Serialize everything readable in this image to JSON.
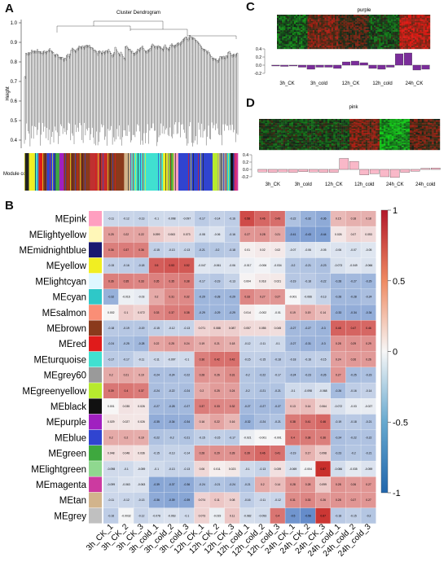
{
  "panels": {
    "A": {
      "letter": "A",
      "title": "Cluster Dendrogram",
      "ylabel": "Height",
      "yticks": [
        "1.0",
        "0.9",
        "0.8",
        "0.7",
        "0.6",
        "0.5",
        "0.4"
      ],
      "module_colors_label": "Module colors"
    },
    "B": {
      "letter": "B"
    },
    "C": {
      "letter": "C",
      "title": "purple",
      "yticks": [
        "0.4",
        "0.2",
        "0.0",
        "-0.2"
      ],
      "xlabels": [
        "3h_CK",
        "3h_cold",
        "12h_CK",
        "12h_cold",
        "24h_CK"
      ],
      "bar_color": "#7b2d9b",
      "bar_values": [
        -0.02,
        -0.03,
        -0.02,
        -0.05,
        -0.1,
        -0.05,
        -0.05,
        -0.08,
        0.08,
        0.1,
        0.06,
        -0.08,
        -0.1,
        -0.05,
        0.28,
        0.3,
        -0.12,
        -0.1
      ]
    },
    "D": {
      "letter": "D",
      "title": "pink",
      "yticks": [
        "0.4",
        "0.2",
        "0.0",
        "-0.2"
      ],
      "xlabels": [
        "3h_CK",
        "3h_cold",
        "12h_CK",
        "12h_cold",
        "24h_CK",
        "24h_cold"
      ],
      "bar_color": "#f9b8c8",
      "bar_values": [
        -0.07,
        -0.08,
        -0.07,
        -0.08,
        -0.06,
        -0.07,
        -0.08,
        -0.08,
        0.3,
        0.22,
        -0.15,
        -0.12,
        -0.2,
        -0.22,
        -0.08,
        -0.05,
        0.03,
        0.04
      ]
    }
  },
  "heatmap": {
    "columns": [
      "3h_CK_1",
      "3h_CK_2",
      "3h_CK_3",
      "3h_cold_1",
      "3h_cold_2",
      "3h_cold_3",
      "12h_CK_1",
      "12h_CK_2",
      "12h_CK_3",
      "12h_cold_1",
      "12h_cold_2",
      "12h_cold_3",
      "24h_CK_1",
      "24h_CK_2",
      "24h_CK_3",
      "24h_cold_1",
      "24h_cold_2",
      "24h_cold_3"
    ],
    "colorbar_ticks": [
      "1",
      "0.5",
      "0",
      "-0.5",
      "-1"
    ],
    "rows": [
      {
        "name": "MEpink",
        "color": "#ff9fc0",
        "values": [
          -0.11,
          -0.12,
          -0.13,
          -0.1,
          -0.098,
          -0.097,
          -0.17,
          -0.14,
          -0.16,
          0.58,
          0.46,
          0.43,
          -0.22,
          -0.32,
          -0.36,
          0.15,
          0.18,
          0.18
        ]
      },
      {
        "name": "MElightyellow",
        "color": "#fff7b8",
        "values": [
          0.25,
          0.22,
          0.22,
          0.099,
          0.063,
          0.073,
          -0.08,
          -0.06,
          -0.16,
          0.27,
          0.28,
          0.21,
          -0.41,
          -0.43,
          -0.44,
          0.026,
          0.07,
          0.053
        ]
      },
      {
        "name": "MEmidnightblue",
        "color": "#191970",
        "values": [
          0.36,
          0.37,
          0.36,
          -0.15,
          -0.13,
          -0.13,
          -0.21,
          -0.2,
          -0.18,
          0.01,
          0.02,
          0.02,
          -0.07,
          -0.06,
          -0.05,
          -0.06,
          -0.07,
          -0.05
        ]
      },
      {
        "name": "MEyellow",
        "color": "#f1ee22",
        "values": [
          -0.15,
          -0.16,
          -0.18,
          0.5,
          0.53,
          0.52,
          -0.047,
          -0.061,
          -0.06,
          -0.017,
          -0.006,
          -0.034,
          -0.2,
          -0.21,
          -0.23,
          -0.073,
          -0.049,
          -0.066
        ]
      },
      {
        "name": "MElightcyan",
        "color": "#dff7ff",
        "values": [
          0.36,
          0.35,
          0.33,
          0.35,
          0.35,
          0.38,
          -0.17,
          -0.19,
          -0.13,
          0.004,
          0.018,
          0.021,
          -0.19,
          -0.18,
          -0.22,
          -0.28,
          -0.27,
          -0.29
        ]
      },
      {
        "name": "MEcyan",
        "color": "#2ec8c8",
        "values": [
          -0.32,
          -0.016,
          -0.03,
          0.2,
          0.31,
          0.32,
          -0.29,
          -0.28,
          -0.29,
          0.33,
          0.27,
          0.27,
          -0.001,
          -0.066,
          -0.13,
          -0.28,
          -0.28,
          -0.24
        ]
      },
      {
        "name": "MEsalmon",
        "color": "#fa8e76",
        "values": [
          0.002,
          0.1,
          0.072,
          0.33,
          0.37,
          0.38,
          -0.29,
          -0.29,
          -0.29,
          0.014,
          -0.002,
          -0.01,
          0.19,
          0.19,
          0.14,
          -0.33,
          -0.34,
          -0.34
        ]
      },
      {
        "name": "MEbrown",
        "color": "#8a3a1c",
        "values": [
          -0.18,
          -0.19,
          -0.19,
          -0.15,
          -0.12,
          -0.13,
          0.071,
          0.088,
          0.087,
          0.057,
          0.055,
          0.045,
          -0.27,
          -0.27,
          -0.3,
          0.48,
          0.47,
          0.46
        ]
      },
      {
        "name": "MEred",
        "color": "#e01b1b",
        "values": [
          -0.24,
          -0.25,
          -0.28,
          0.22,
          0.25,
          0.24,
          0.19,
          0.21,
          0.18,
          -0.12,
          -0.11,
          -0.1,
          -0.27,
          -0.31,
          -0.3,
          0.28,
          0.29,
          0.29
        ]
      },
      {
        "name": "MEturquoise",
        "color": "#40e0d0",
        "values": [
          -0.17,
          -0.17,
          -0.11,
          -0.11,
          -0.097,
          -0.1,
          0.36,
          0.42,
          0.42,
          -0.15,
          -0.15,
          -0.18,
          -0.18,
          -0.16,
          -0.15,
          0.24,
          0.26,
          0.26
        ]
      },
      {
        "name": "MEgrey60",
        "color": "#9a9a9a",
        "values": [
          0.2,
          0.21,
          0.19,
          -0.24,
          -0.24,
          -0.22,
          0.28,
          0.26,
          0.31,
          -0.2,
          -0.22,
          -0.17,
          -0.24,
          -0.23,
          -0.26,
          0.27,
          -0.25,
          -0.23
        ]
      },
      {
        "name": "MEgreenyellow",
        "color": "#b7ea2e",
        "values": [
          0.39,
          0.4,
          0.37,
          -0.24,
          -0.22,
          -0.24,
          0.2,
          0.25,
          0.24,
          -0.2,
          -0.21,
          -0.21,
          -0.1,
          -0.098,
          -0.068,
          -0.26,
          -0.16,
          -0.14
        ]
      },
      {
        "name": "MEblack",
        "color": "#111111",
        "values": [
          0.001,
          0.035,
          0.026,
          -0.27,
          -0.28,
          -0.27,
          0.37,
          0.33,
          0.32,
          -0.27,
          -0.27,
          -0.27,
          0.13,
          0.14,
          0.064,
          -0.072,
          -0.03,
          -0.027
        ]
      },
      {
        "name": "MEpurple",
        "color": "#a020c0",
        "values": [
          0.029,
          0.027,
          0.026,
          -0.35,
          -0.34,
          -0.34,
          0.16,
          0.22,
          0.16,
          -0.32,
          -0.24,
          -0.21,
          0.38,
          0.41,
          0.46,
          -0.19,
          -0.18,
          -0.21
        ]
      },
      {
        "name": "MEblue",
        "color": "#3044d0",
        "values": [
          0.2,
          0.2,
          0.19,
          -0.22,
          -0.2,
          -0.21,
          -0.15,
          -0.15,
          -0.17,
          -0.021,
          -0.001,
          -0.001,
          0.4,
          0.38,
          0.36,
          -0.24,
          -0.22,
          -0.22
        ]
      },
      {
        "name": "MEgreen",
        "color": "#3ea83e",
        "values": [
          0.048,
          0.048,
          0.036,
          -0.15,
          -0.13,
          -0.14,
          0.28,
          0.29,
          0.28,
          0.39,
          0.46,
          0.41,
          -0.19,
          0.17,
          0.098,
          -0.23,
          -0.2,
          -0.21
        ]
      },
      {
        "name": "MElightgreen",
        "color": "#8fd88f",
        "values": [
          -0.098,
          -0.1,
          -0.059,
          -0.1,
          -0.13,
          -0.13,
          0.06,
          0.011,
          0.023,
          -0.1,
          -0.13,
          0.039,
          -0.069,
          -0.004,
          0.87,
          -0.086,
          -0.035,
          -0.059
        ]
      },
      {
        "name": "MEmagenta",
        "color": "#cc3aa0",
        "values": [
          -0.099,
          -0.063,
          -0.063,
          -0.39,
          -0.37,
          -0.36,
          -0.24,
          -0.21,
          -0.24,
          -0.21,
          0.2,
          0.14,
          0.28,
          0.28,
          0.099,
          0.28,
          0.26,
          0.27
        ]
      },
      {
        "name": "MEtan",
        "color": "#d2b48c",
        "values": [
          -0.11,
          -0.12,
          -0.13,
          -0.36,
          -0.39,
          -0.39,
          0.074,
          0.11,
          0.08,
          -0.16,
          -0.11,
          -0.12,
          0.31,
          0.33,
          0.26,
          0.28,
          0.27,
          0.27
        ]
      },
      {
        "name": "MEgrey",
        "color": "#c0c0c0",
        "values": [
          -0.16,
          -0.0032,
          -0.12,
          -0.078,
          -0.063,
          -0.1,
          0.073,
          -0.019,
          0.11,
          -0.082,
          -0.093,
          0.4,
          -0.5,
          -0.56,
          0.67,
          -0.18,
          -0.15,
          -0.2
        ]
      }
    ]
  }
}
